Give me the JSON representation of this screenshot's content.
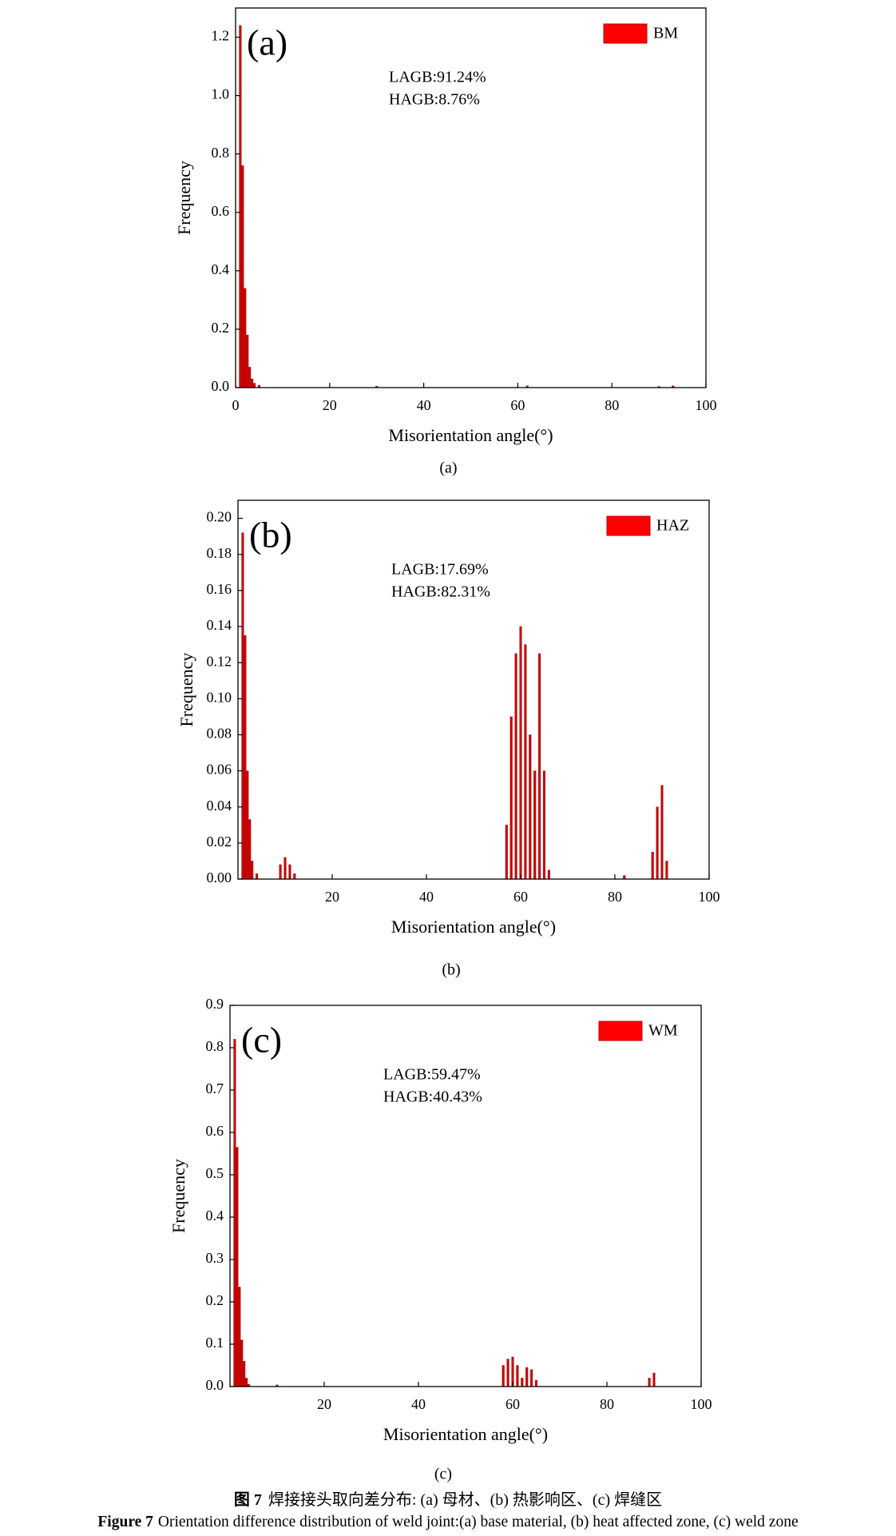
{
  "chart_data": [
    {
      "type": "bar",
      "panel_label": "(a)",
      "annotations": [
        "LAGB:91.24%",
        "HAGB:8.76%"
      ],
      "x_label": "Misorientation angle(°)",
      "y_label": "Frequency",
      "caption": "(a)",
      "x": [
        1,
        1.5,
        2,
        2.5,
        3,
        3.5,
        4,
        5,
        30,
        62,
        90,
        93
      ],
      "series": [
        {
          "name": "BM",
          "color": "#d00000",
          "values": [
            1.24,
            0.76,
            0.34,
            0.18,
            0.07,
            0.03,
            0.015,
            0.008,
            0.005,
            0.006,
            0.004,
            0.006
          ]
        }
      ],
      "xlim": [
        0,
        100
      ],
      "xticks": [
        0,
        20,
        40,
        60,
        80,
        100
      ],
      "ylim": [
        0,
        1.3
      ],
      "yticks": [
        {
          "value": 0,
          "label": "0.0"
        },
        0.2,
        0.4,
        0.6,
        0.8,
        {
          "value": 1,
          "label": "1.0"
        },
        1.2
      ]
    },
    {
      "type": "bar",
      "panel_label": "(b)",
      "annotations": [
        "LAGB:17.69%",
        "HAGB:82.31%"
      ],
      "x_label": "Misorientation angle(°)",
      "y_label": "Frequency",
      "caption": "(b)",
      "x": [
        1,
        1.5,
        2,
        2.5,
        3,
        4,
        9,
        10,
        11,
        12,
        57,
        58,
        59,
        60,
        61,
        62,
        63,
        64,
        65,
        66,
        82,
        88,
        89,
        90,
        91
      ],
      "series": [
        {
          "name": "HAZ",
          "color": "#d00000",
          "values": [
            0.192,
            0.135,
            0.06,
            0.033,
            0.01,
            0.003,
            0.008,
            0.012,
            0.008,
            0.003,
            0.03,
            0.09,
            0.125,
            0.14,
            0.13,
            0.08,
            0.06,
            0.125,
            0.06,
            0.005,
            0.002,
            0.015,
            0.04,
            0.052,
            0.01
          ]
        }
      ],
      "xlim": [
        0,
        100
      ],
      "xticks": [
        20,
        40,
        60,
        80,
        100
      ],
      "ylim": [
        0,
        0.21
      ],
      "yticks": [
        {
          "value": 0,
          "label": "0.00"
        },
        0.02,
        0.04,
        0.06,
        0.08,
        {
          "value": 0.1,
          "label": "0.10"
        },
        0.12,
        0.14,
        0.16,
        0.18,
        {
          "value": 0.2,
          "label": "0.20"
        }
      ]
    },
    {
      "type": "bar",
      "panel_label": "(c)",
      "annotations": [
        "LAGB:59.47%",
        "HAGB:40.43%"
      ],
      "x_label": "Misorientation angle(°)",
      "y_label": "Frequency",
      "caption": "(c)",
      "x": [
        1,
        1.5,
        2,
        2.5,
        3,
        3.5,
        4,
        10,
        58,
        59,
        60,
        61,
        62,
        63,
        64,
        65,
        89,
        90
      ],
      "series": [
        {
          "name": "WM",
          "color": "#d00000",
          "values": [
            0.82,
            0.565,
            0.235,
            0.11,
            0.06,
            0.02,
            0.005,
            0.004,
            0.05,
            0.065,
            0.07,
            0.05,
            0.02,
            0.045,
            0.04,
            0.015,
            0.02,
            0.032
          ]
        }
      ],
      "xlim": [
        0,
        100
      ],
      "xticks": [
        20,
        40,
        60,
        80,
        100
      ],
      "ylim": [
        0,
        0.9
      ],
      "yticks": [
        {
          "value": 0,
          "label": "0.0"
        },
        0.1,
        0.2,
        0.3,
        0.4,
        0.5,
        0.6,
        0.7,
        0.8,
        0.9
      ]
    }
  ],
  "caption_cn": {
    "label": "图 7",
    "text": "焊接接头取向差分布: (a)  母材、(b)  热影响区、(c)  焊缝区"
  },
  "caption_en": {
    "label": "Figure 7",
    "text": "Orientation difference distribution of weld joint:(a) base material, (b) heat affected zone, (c) weld zone"
  }
}
